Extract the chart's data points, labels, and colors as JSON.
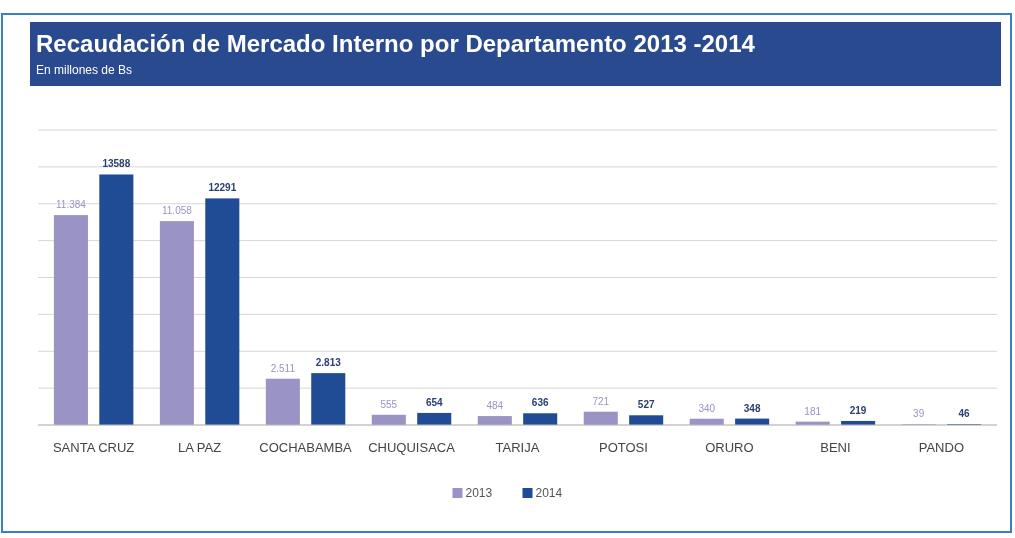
{
  "chart_data": {
    "type": "bar",
    "title": "Recaudación de Mercado Interno por Departamento 2013 -2014",
    "subtitle": "En millones de Bs",
    "categories": [
      "SANTA CRUZ",
      "LA PAZ",
      "COCHABAMBA",
      "CHUQUISACA",
      "TARIJA",
      "POTOSI",
      "ORURO",
      "BENI",
      "PANDO"
    ],
    "series": [
      {
        "name": "2013",
        "color": "#9a93c6",
        "values": [
          11384,
          11058,
          2511,
          555,
          484,
          721,
          340,
          181,
          39
        ],
        "value_labels": [
          "11.384",
          "11.058",
          "2.511",
          "555",
          "484",
          "721",
          "340",
          "181",
          "39"
        ]
      },
      {
        "name": "2014",
        "color": "#1f4c94",
        "values": [
          13588,
          12291,
          2813,
          654,
          636,
          527,
          348,
          219,
          46
        ],
        "value_labels": [
          "13588",
          "12291",
          "2.813",
          "654",
          "636",
          "527",
          "348",
          "219",
          "46"
        ]
      }
    ],
    "ylim": [
      0,
      16000
    ],
    "yticks": [
      {
        "value": 0,
        "label": null
      },
      {
        "value": 2000,
        "label": null
      },
      {
        "value": 4000,
        "label": null
      },
      {
        "value": 6000,
        "label": null
      },
      {
        "value": 8000,
        "label": null
      },
      {
        "value": 10000,
        "label": null
      },
      {
        "value": 12000,
        "label": null
      },
      {
        "value": 14000,
        "label": null
      },
      {
        "value": 16000,
        "label": null
      }
    ],
    "grid": "y",
    "legend": "bottom"
  }
}
